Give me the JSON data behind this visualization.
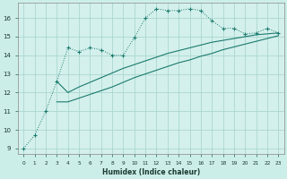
{
  "xlabel": "Humidex (Indice chaleur)",
  "bg_color": "#cceee8",
  "plot_bg_color": "#d4f0ec",
  "grid_color": "#aad8d0",
  "line_color": "#1a7a6e",
  "xlim": [
    -0.5,
    23.5
  ],
  "ylim": [
    8.7,
    16.8
  ],
  "xticks": [
    0,
    1,
    2,
    3,
    4,
    5,
    6,
    7,
    8,
    9,
    10,
    11,
    12,
    13,
    14,
    15,
    16,
    17,
    18,
    19,
    20,
    21,
    22,
    23
  ],
  "yticks": [
    9,
    10,
    11,
    12,
    13,
    14,
    15,
    16
  ],
  "curve1_x": [
    0,
    1,
    2,
    3,
    4,
    5,
    6,
    7,
    8,
    9,
    10,
    11,
    12,
    13,
    14,
    15,
    16,
    17,
    18,
    19,
    20,
    21,
    22,
    23
  ],
  "curve1_y": [
    9.0,
    9.7,
    11.0,
    12.6,
    14.4,
    14.2,
    14.4,
    14.3,
    14.0,
    14.0,
    14.95,
    16.0,
    16.5,
    16.4,
    16.4,
    16.5,
    16.4,
    15.85,
    15.45,
    15.45,
    15.15,
    15.2,
    15.45,
    15.2
  ],
  "curve2_x": [
    3,
    4,
    5,
    6,
    7,
    8,
    9,
    10,
    11,
    12,
    13,
    14,
    15,
    16,
    17,
    18,
    19,
    20,
    21,
    22,
    23
  ],
  "curve2_y": [
    12.6,
    12.0,
    12.3,
    12.55,
    12.8,
    13.05,
    13.3,
    13.5,
    13.7,
    13.9,
    14.1,
    14.25,
    14.4,
    14.55,
    14.7,
    14.8,
    14.9,
    15.0,
    15.1,
    15.15,
    15.2
  ],
  "curve3_x": [
    3,
    4,
    5,
    6,
    7,
    8,
    9,
    10,
    11,
    12,
    13,
    14,
    15,
    16,
    17,
    18,
    19,
    20,
    21,
    22,
    23
  ],
  "curve3_y": [
    11.5,
    11.5,
    11.7,
    11.9,
    12.1,
    12.3,
    12.55,
    12.8,
    13.0,
    13.2,
    13.4,
    13.6,
    13.75,
    13.95,
    14.1,
    14.3,
    14.45,
    14.6,
    14.75,
    14.9,
    15.05
  ]
}
